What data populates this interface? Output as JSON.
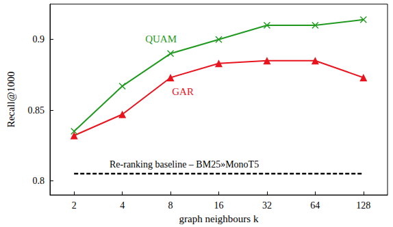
{
  "chart_data": {
    "type": "line",
    "x_label": "graph neighbours k",
    "y_label": "Recall@1000",
    "categories": [
      "2",
      "4",
      "8",
      "16",
      "32",
      "64",
      "128"
    ],
    "series": [
      {
        "name": "QUAM",
        "color": "#1f9a1f",
        "marker": "x",
        "values": [
          0.835,
          0.867,
          0.89,
          0.9,
          0.91,
          0.91,
          0.914
        ]
      },
      {
        "name": "GAR",
        "color": "#e8141e",
        "marker": "triangle",
        "values": [
          0.832,
          0.847,
          0.873,
          0.883,
          0.885,
          0.885,
          0.873
        ]
      },
      {
        "name": "Re-ranking baseline – BM25»MonoT5",
        "color": "#000000",
        "marker": "none",
        "line_style": "dashed",
        "values": [
          0.805,
          0.805,
          0.805,
          0.805,
          0.805,
          0.805,
          0.805
        ]
      }
    ],
    "ylim": [
      0.79,
      0.925
    ],
    "yticks": [
      0.8,
      0.85,
      0.9
    ],
    "grid": false
  }
}
